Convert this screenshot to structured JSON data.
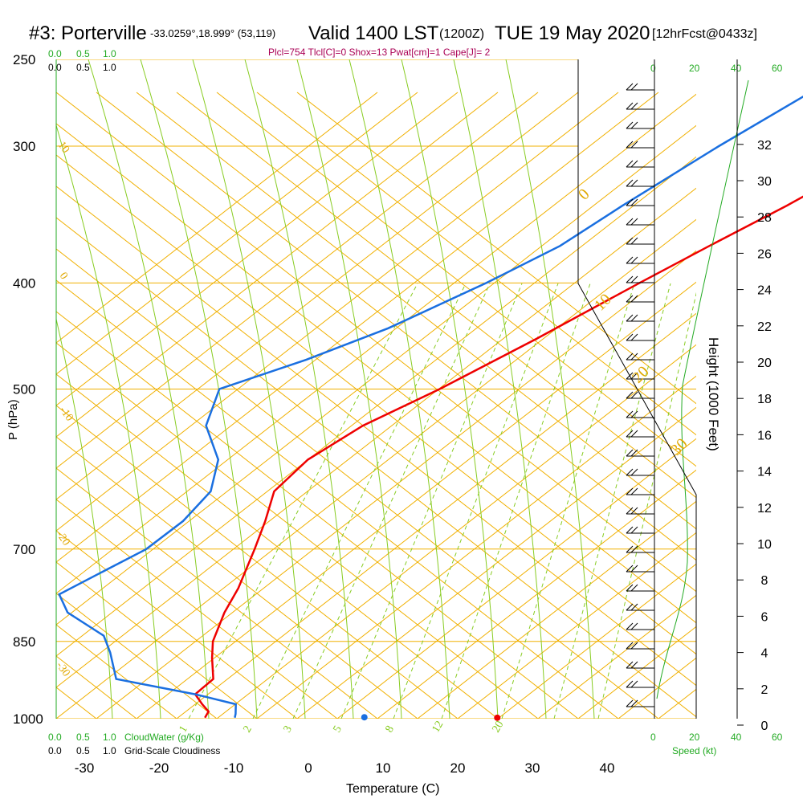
{
  "header": {
    "station": "#3: Porterville",
    "coords": "-33.0259°,18.999° (53,119)",
    "valid": "Valid 1400 LST",
    "utc": "(1200Z)",
    "date": "TUE 19 May 2020",
    "forecast": "[12hrFcst@0433z]",
    "indices": "Plcl=754 Tlcl[C]=0 Shox=13 Pwat[cm]=1 Cape[J]= 2"
  },
  "labels": {
    "pressure_axis": "P (hPa)",
    "temperature_axis": "Temperature (C)",
    "height_axis": "Height (1000 Feet)",
    "speed_axis": "Speed (kt)",
    "cloud_water": "CloudWater (g/Kg)",
    "cloudiness": "Grid-Scale Cloudiness"
  },
  "scales": {
    "cloud_ticks": [
      "0.0",
      "0.5",
      "1.0"
    ],
    "speed_ticks": [
      "0",
      "20",
      "40",
      "60"
    ],
    "height_ticks": [
      "0",
      "2",
      "4",
      "6",
      "8",
      "10",
      "12",
      "14",
      "16",
      "18",
      "20",
      "22",
      "24",
      "26",
      "28",
      "30",
      "32"
    ],
    "pressure_ticks": [
      "250",
      "300",
      "400",
      "500",
      "700",
      "850",
      "1000"
    ],
    "temperature_ticks": [
      "-30",
      "-20",
      "-10",
      "0",
      "10",
      "20",
      "30",
      "40"
    ],
    "isotherm_labels": [
      "10",
      "0",
      "-10",
      "-20",
      "-30"
    ],
    "mixing_ratio_labels": [
      "1",
      "2",
      "3",
      "5",
      "8",
      "12",
      "20"
    ],
    "theta_e_labels": [
      "0",
      "10",
      "20",
      "30"
    ]
  },
  "colors": {
    "temperature": "#ee0000",
    "dewpoint": "#1a6fe0",
    "isobar_isotherm": "#f0b000",
    "dry_adiabat": "#88cc22",
    "mixing_ratio": "#88cc22",
    "cloud_scale": "#22aa22",
    "indices": "#aa0055"
  },
  "chart_data": {
    "type": "line",
    "title": "#3: Porterville Valid 1400 LST (1200Z) TUE 19 May 2020 [12hrFcst@0433z]",
    "xlabel": "Temperature (C)",
    "ylabel": "P (hPa)",
    "xlim": [
      -30,
      40
    ],
    "ylim": [
      1000,
      250
    ],
    "y_scale": "log",
    "series": [
      {
        "name": "Temperature",
        "points": [
          [
            265,
            -6.5
          ],
          [
            280,
            -9.0
          ],
          [
            300,
            -12.0
          ],
          [
            340,
            -17.0
          ],
          [
            370,
            -21.0
          ],
          [
            400,
            -24.5
          ],
          [
            450,
            -29.5
          ],
          [
            500,
            -34.5
          ],
          [
            540,
            -39.0
          ],
          [
            580,
            -41.0
          ],
          [
            620,
            -40.5
          ],
          [
            660,
            -37.0
          ],
          [
            700,
            -34.0
          ],
          [
            760,
            -30.0
          ],
          [
            800,
            -28.0
          ],
          [
            850,
            -25.0
          ],
          [
            880,
            -22.5
          ],
          [
            920,
            -19.0
          ],
          [
            950,
            -19.0
          ],
          [
            970,
            -16.5
          ],
          [
            985,
            -14.5
          ],
          [
            998,
            -14.0
          ]
        ]
      },
      {
        "name": "Dew point",
        "points": [
          [
            262,
            -31.0
          ],
          [
            300,
            -35.5
          ],
          [
            340,
            -39.0
          ],
          [
            370,
            -41.0
          ],
          [
            400,
            -45.0
          ],
          [
            440,
            -51.0
          ],
          [
            470,
            -57.0
          ],
          [
            500,
            -64.0
          ],
          [
            540,
            -60.0
          ],
          [
            580,
            -53.0
          ],
          [
            620,
            -49.0
          ],
          [
            660,
            -48.0
          ],
          [
            700,
            -48.5
          ],
          [
            730,
            -50.5
          ],
          [
            770,
            -53.0
          ],
          [
            800,
            -49.0
          ],
          [
            840,
            -40.5
          ],
          [
            870,
            -37.0
          ],
          [
            920,
            -32.0
          ],
          [
            950,
            -19.0
          ],
          [
            970,
            -12.0
          ],
          [
            990,
            -10.5
          ],
          [
            998,
            -10.0
          ]
        ]
      }
    ],
    "surface_markers": [
      {
        "name": "surface temperature",
        "pressure": 998,
        "x": 25.3
      },
      {
        "name": "surface dew point",
        "pressure": 997,
        "x": 7.5
      }
    ],
    "height_scale_kft": [
      0,
      33
    ],
    "speed_scale_kt": [
      0,
      60
    ]
  }
}
